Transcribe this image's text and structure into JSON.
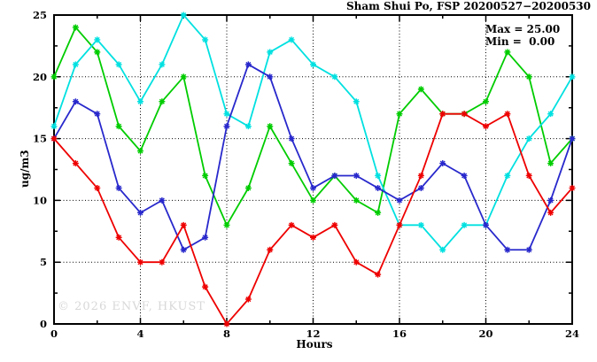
{
  "title": "Sham Shui Po, FSP 20200527−20200530",
  "stats": {
    "max_label": "Max = 25.00",
    "min_label": "Min =  0.00"
  },
  "watermark": "© 2026 ENVF, HKUST",
  "colors": {
    "red": "#ee0000",
    "green": "#00cc00",
    "blue": "#2828cc",
    "cyan": "#00e0e0",
    "axis": "#000000",
    "grid": "#000000",
    "watermark_gray": "#d8d8d8",
    "background": "#ffffff"
  },
  "chart_data": {
    "type": "line",
    "title": "Sham Shui Po, FSP 20200527−20200530",
    "xlabel": "Hours",
    "ylabel": "ug/m3",
    "xlim": [
      0,
      24
    ],
    "ylim": [
      0,
      25
    ],
    "xticks": [
      0,
      4,
      8,
      12,
      16,
      20,
      24
    ],
    "yticks": [
      0,
      5,
      10,
      15,
      20,
      25
    ],
    "grid": true,
    "legend_position": "none",
    "marker": "star",
    "annotations": [
      "Max = 25.00",
      "Min =  0.00"
    ],
    "x": [
      0,
      1,
      2,
      3,
      4,
      5,
      6,
      7,
      8,
      9,
      10,
      11,
      12,
      13,
      14,
      15,
      16,
      17,
      18,
      19,
      20,
      21,
      22,
      23,
      24
    ],
    "series": [
      {
        "name": "green",
        "color": "#00cc00",
        "zorder": 1,
        "values": [
          20,
          24,
          22,
          16,
          14,
          18,
          20,
          12,
          8,
          11,
          16,
          13,
          10,
          12,
          10,
          9,
          17,
          19,
          17,
          17,
          18,
          22,
          20,
          13,
          15
        ]
      },
      {
        "name": "cyan",
        "color": "#00e0e0",
        "zorder": 2,
        "values": [
          16,
          21,
          23,
          21,
          18,
          21,
          25,
          23,
          17,
          16,
          22,
          23,
          21,
          20,
          18,
          12,
          8,
          8,
          6,
          8,
          8,
          12,
          15,
          17,
          20
        ]
      },
      {
        "name": "blue",
        "color": "#2828cc",
        "zorder": 3,
        "values": [
          15,
          18,
          17,
          11,
          9,
          10,
          6,
          7,
          16,
          21,
          20,
          15,
          11,
          12,
          12,
          11,
          10,
          11,
          13,
          12,
          8,
          6,
          6,
          10,
          15
        ]
      },
      {
        "name": "red",
        "color": "#ee0000",
        "zorder": 4,
        "values": [
          15,
          13,
          11,
          7,
          5,
          5,
          8,
          3,
          0,
          2,
          6,
          8,
          7,
          8,
          5,
          4,
          8,
          12,
          17,
          17,
          16,
          17,
          12,
          9,
          11
        ]
      }
    ]
  }
}
